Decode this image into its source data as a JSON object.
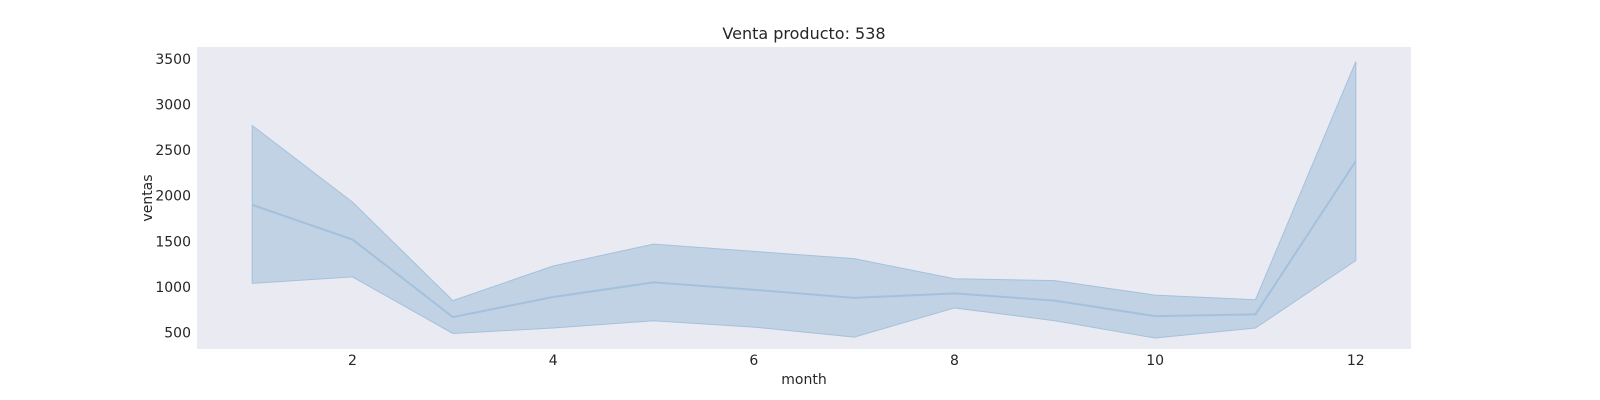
{
  "chart_data": {
    "type": "line",
    "title": "Venta producto: 538",
    "xlabel": "month",
    "ylabel": "ventas",
    "xlim": [
      0.45,
      12.55
    ],
    "ylim": [
      320,
      3630
    ],
    "x_ticks": [
      2,
      4,
      6,
      8,
      10,
      12
    ],
    "y_ticks": [
      500,
      1000,
      1500,
      2000,
      2500,
      3000,
      3500
    ],
    "grid": false,
    "colors": {
      "plot_background": "#eaeaf2",
      "line": "#a4c1dc",
      "band": "#b3cadf"
    },
    "series": [
      {
        "x": [
          1,
          2,
          3,
          4,
          5,
          6,
          7,
          8,
          9,
          10,
          11,
          12
        ],
        "values": [
          1900,
          1520,
          670,
          890,
          1050,
          970,
          880,
          930,
          850,
          680,
          700,
          2380
        ],
        "lower": [
          1040,
          1110,
          490,
          550,
          630,
          560,
          450,
          770,
          630,
          440,
          550,
          1290
        ],
        "upper": [
          2770,
          1930,
          850,
          1230,
          1470,
          1390,
          1310,
          1090,
          1070,
          910,
          860,
          3470
        ]
      }
    ]
  }
}
